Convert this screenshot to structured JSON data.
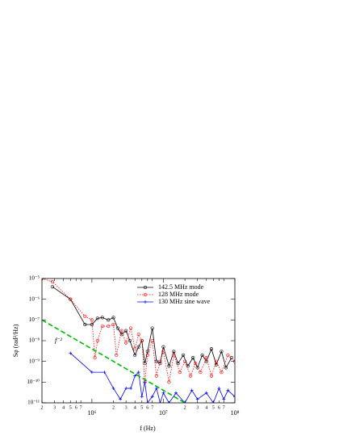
{
  "chart_data": {
    "type": "line",
    "xlabel": "f (Hz)",
    "ylabel": "Sφ (rad²/Hz)",
    "annotation": "f⁻²",
    "xscale": "log",
    "yscale": "log",
    "xlim": [
      200000,
      100000000
    ],
    "ylim": [
      1e-11,
      1e-05
    ],
    "xticks": [
      {
        "value": 200000,
        "label": "2"
      },
      {
        "value": 300000,
        "label": "3"
      },
      {
        "value": 400000,
        "label": "4"
      },
      {
        "value": 500000,
        "label": "5"
      },
      {
        "value": 600000,
        "label": "6"
      },
      {
        "value": 700000,
        "label": "7"
      },
      {
        "value": 1000000,
        "label": "10⁶"
      },
      {
        "value": 2000000,
        "label": "2"
      },
      {
        "value": 3000000,
        "label": "3"
      },
      {
        "value": 4000000,
        "label": "4"
      },
      {
        "value": 5000000,
        "label": "5"
      },
      {
        "value": 6000000,
        "label": "6"
      },
      {
        "value": 7000000,
        "label": "7"
      },
      {
        "value": 10000000,
        "label": "10⁷"
      },
      {
        "value": 20000000,
        "label": "2"
      },
      {
        "value": 30000000,
        "label": "3"
      },
      {
        "value": 40000000,
        "label": "4"
      },
      {
        "value": 50000000,
        "label": "5"
      },
      {
        "value": 60000000,
        "label": "6"
      },
      {
        "value": 70000000,
        "label": "7"
      },
      {
        "value": 100000000,
        "label": "10⁸"
      }
    ],
    "yticks": [
      {
        "value": 1e-05,
        "label": "10⁻⁵"
      },
      {
        "value": 1e-06,
        "label": "10⁻⁶"
      },
      {
        "value": 1e-07,
        "label": "10⁻⁷"
      },
      {
        "value": 1e-08,
        "label": "10⁻⁸"
      },
      {
        "value": 1e-09,
        "label": "10⁻⁹"
      },
      {
        "value": 1e-10,
        "label": "10⁻¹⁰"
      },
      {
        "value": 1e-11,
        "label": "10⁻¹¹"
      }
    ],
    "legend": "upper right",
    "series": [
      {
        "name": "142.5 MHz mode",
        "color": "#000000",
        "linestyle": "solid",
        "marker": "circle",
        "x": [
          280000,
          500000,
          800000,
          1000000,
          1200000,
          1400000,
          1700000,
          2000000,
          2300000,
          2600000,
          3000000,
          3400000,
          4000000,
          4500000,
          5000000,
          5500000,
          6000000,
          7000000,
          8000000,
          9000000,
          10000000,
          12000000,
          14000000,
          16000000,
          19000000,
          22000000,
          26000000,
          30000000,
          35000000,
          40000000,
          47000000,
          55000000,
          65000000,
          75000000,
          90000000
        ],
        "values": [
          4e-06,
          1e-06,
          6e-08,
          6e-08,
          1.2e-07,
          1.3e-07,
          1e-07,
          1.3e-07,
          4e-08,
          2e-08,
          3e-08,
          1e-08,
          2e-09,
          5e-09,
          1e-08,
          8e-10,
          3e-09,
          4e-08,
          1e-09,
          8e-10,
          5e-09,
          6e-10,
          3e-09,
          8e-10,
          2e-09,
          6e-10,
          1.5e-09,
          5e-10,
          2e-09,
          1e-09,
          4e-09,
          7e-10,
          3e-09,
          5e-10,
          1.5e-09
        ]
      },
      {
        "name": "128 MHz mode",
        "color": "#ff0000",
        "linestyle": "dotted",
        "marker": "circle",
        "x": [
          200000,
          280000,
          500000,
          800000,
          1000000,
          1100000,
          1200000,
          1400000,
          1700000,
          2000000,
          2200000,
          2600000,
          3000000,
          3500000,
          4000000,
          4500000,
          5000000,
          5500000,
          6000000,
          7000000,
          8000000,
          9000000,
          10000000,
          12000000,
          14000000,
          17000000,
          20000000,
          24000000,
          28000000,
          33000000,
          40000000,
          47000000,
          55000000,
          65000000,
          80000000,
          100000000
        ],
        "values": [
          1e-05,
          7e-06,
          1e-06,
          1.5e-07,
          1e-07,
          1.5e-09,
          1e-08,
          5e-08,
          5e-08,
          6e-08,
          2e-09,
          3e-08,
          8e-09,
          4e-08,
          4e-09,
          2e-08,
          1e-08,
          1e-10,
          2e-09,
          1e-08,
          2e-10,
          1e-09,
          3e-09,
          1e-10,
          2e-09,
          3e-10,
          1e-09,
          2e-10,
          8e-10,
          3e-10,
          1.5e-09,
          2e-10,
          1e-09,
          3e-10,
          2e-09,
          1e-09
        ]
      },
      {
        "name": "130 MHz sine wave",
        "color": "#0000ff",
        "linestyle": "solid",
        "marker": "plus",
        "x": [
          500000,
          1000000,
          1500000,
          2000000,
          2500000,
          3000000,
          3500000,
          4000000,
          4500000,
          5000000,
          5500000,
          6000000,
          7000000,
          8000000,
          9000000,
          10000000,
          12000000,
          15000000,
          20000000,
          25000000,
          30000000,
          40000000,
          50000000,
          60000000,
          70000000,
          80000000,
          100000000
        ],
        "values": [
          2.5e-09,
          3e-10,
          3e-10,
          5e-11,
          1.5e-11,
          5e-11,
          5e-11,
          2e-10,
          3e-10,
          2e-11,
          1e-10,
          1e-11,
          2e-11,
          5e-11,
          1e-11,
          3e-11,
          1e-11,
          3e-11,
          1e-11,
          4e-11,
          1.5e-11,
          3e-11,
          1e-11,
          5e-11,
          1.5e-11,
          4e-11,
          2e-11
        ]
      },
      {
        "color": "#00bb00",
        "linestyle": "dashed",
        "marker": null,
        "x": [
          200000,
          20000000
        ],
        "values": [
          1e-07,
          1e-11
        ]
      }
    ]
  }
}
